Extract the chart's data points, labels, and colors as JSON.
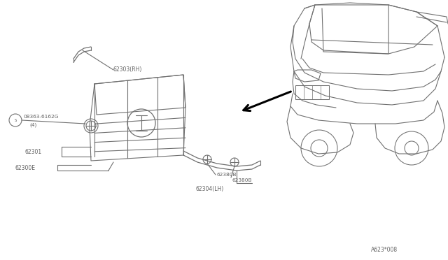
{
  "bg_color": "#ffffff",
  "lc": "#707070",
  "tc": "#606060",
  "diagram_code": "A623*008",
  "label_62303": "62303(RH)",
  "label_08363": "08363-6162G",
  "label_08363_qty": "(4)",
  "label_62301": "62301",
  "label_62300E": "62300E",
  "label_62304": "62304(LH)",
  "label_62380B": "62380B"
}
